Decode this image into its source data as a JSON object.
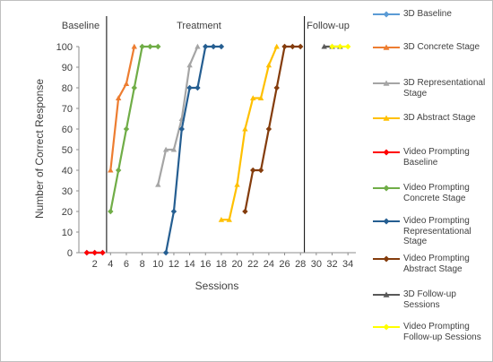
{
  "chart_data": {
    "type": "line",
    "phases": [
      "Baseline",
      "Treatment",
      "Follow-up"
    ],
    "xlabel": "Sessions",
    "ylabel": "Number of Correct Response",
    "xticks": [
      2,
      4,
      6,
      8,
      10,
      12,
      14,
      16,
      18,
      20,
      22,
      24,
      26,
      28,
      30,
      32,
      34
    ],
    "yticks": [
      0,
      10,
      20,
      30,
      40,
      50,
      60,
      70,
      80,
      90,
      100
    ],
    "xlim": [
      0,
      35
    ],
    "ylim": [
      0,
      100
    ],
    "phase_lines": [
      3.5,
      28.5
    ],
    "series": [
      {
        "name": "3D Baseline",
        "color": "#5b9bd5",
        "marker": "diamond",
        "x": [
          1,
          2,
          3
        ],
        "y": [
          0,
          0,
          0
        ]
      },
      {
        "name": "3D Concrete Stage",
        "color": "#ed7d31",
        "marker": "triangle",
        "x": [
          4,
          5,
          6,
          7
        ],
        "y": [
          40,
          75,
          82,
          100
        ]
      },
      {
        "name": "3D Representational Stage",
        "color": "#a5a5a5",
        "marker": "triangle",
        "x": [
          10,
          11,
          12,
          13,
          14,
          15
        ],
        "y": [
          33,
          50,
          50,
          65,
          91,
          100
        ]
      },
      {
        "name": "3D Abstract Stage",
        "color": "#ffc000",
        "marker": "triangle",
        "x": [
          18,
          19,
          20,
          21,
          22,
          23,
          24,
          25
        ],
        "y": [
          16,
          16,
          33,
          60,
          75,
          75,
          91,
          100
        ]
      },
      {
        "name": "Video Prompting Baseline",
        "color": "#ff0000",
        "marker": "diamond",
        "x": [
          1,
          2,
          3
        ],
        "y": [
          0,
          0,
          0
        ]
      },
      {
        "name": "Video Prompting Concrete Stage",
        "color": "#70ad47",
        "marker": "diamond",
        "x": [
          4,
          5,
          6,
          7,
          8,
          9,
          10
        ],
        "y": [
          20,
          40,
          60,
          80,
          100,
          100,
          100
        ]
      },
      {
        "name": "Video Prompting Representational Stage",
        "color": "#255e91",
        "marker": "diamond",
        "x": [
          11,
          12,
          13,
          14,
          15,
          16,
          17,
          18
        ],
        "y": [
          0,
          20,
          60,
          80,
          80,
          100,
          100,
          100
        ]
      },
      {
        "name": "Video Prompting Abstract Stage",
        "color": "#843c0c",
        "marker": "diamond",
        "x": [
          21,
          22,
          23,
          24,
          25,
          26,
          27,
          28
        ],
        "y": [
          20,
          40,
          40,
          60,
          80,
          100,
          100,
          100
        ]
      },
      {
        "name": "3D Follow-up Sessions",
        "color": "#595959",
        "marker": "triangle",
        "x": [
          31,
          32,
          33
        ],
        "y": [
          100,
          100,
          100
        ]
      },
      {
        "name": "Video Prompting Follow-up Sessions",
        "color": "#ffff00",
        "marker": "diamond",
        "x": [
          32,
          33,
          34
        ],
        "y": [
          100,
          100,
          100
        ]
      }
    ]
  }
}
